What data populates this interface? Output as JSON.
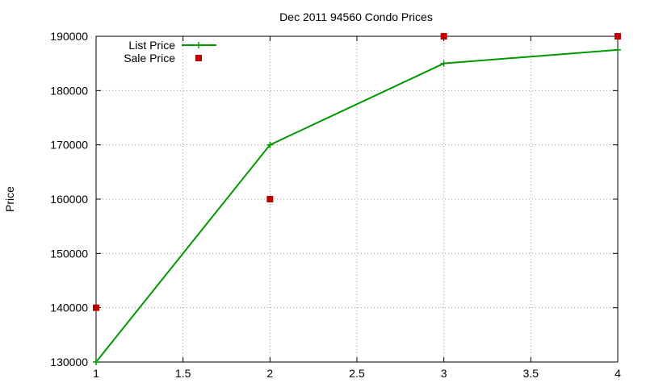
{
  "chart_data": {
    "type": "line",
    "title": "Dec 2011 94560 Condo Prices",
    "xlabel": "",
    "ylabel": "Price",
    "xlim": [
      1,
      4
    ],
    "ylim": [
      130000,
      190000
    ],
    "xticks": [
      "1",
      "1.5",
      "2",
      "2.5",
      "3",
      "3.5",
      "4"
    ],
    "yticks": [
      "130000",
      "140000",
      "150000",
      "160000",
      "170000",
      "180000",
      "190000"
    ],
    "grid": true,
    "legend_position": "top-left",
    "series": [
      {
        "name": "List Price",
        "style": "line-with-plus-markers",
        "color": "#009900",
        "x": [
          1,
          2,
          3,
          4
        ],
        "y": [
          130000,
          170000,
          185000,
          187500
        ]
      },
      {
        "name": "Sale Price",
        "style": "square-markers",
        "color": "#c00000",
        "x": [
          1,
          2,
          3,
          4
        ],
        "y": [
          140000,
          160000,
          190000,
          190000
        ]
      }
    ]
  }
}
